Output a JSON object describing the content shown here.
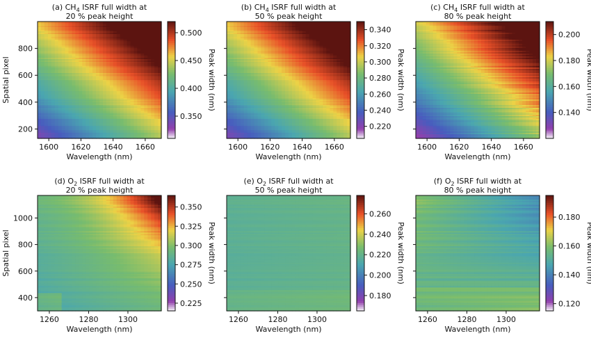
{
  "chart_data": [
    {
      "id": "a",
      "type": "heatmap",
      "title_line1_prefix": "(a) CH",
      "title_sub": "4",
      "title_line1_suffix": " ISRF full width at",
      "title_line2": "20 % peak height",
      "xlabel": "Wavelength (nm)",
      "ylabel": "Spatial pixel",
      "colorbar_label": "Peak width (nm)",
      "xlim": [
        1593,
        1670
      ],
      "ylim": [
        130,
        1000
      ],
      "xticks": [
        1600,
        1620,
        1640,
        1660
      ],
      "yticks": [
        200,
        400,
        600,
        800
      ],
      "clim": [
        0.31,
        0.52
      ],
      "cticks": [
        0.35,
        0.4,
        0.45,
        0.5
      ],
      "cticklabels": [
        "0.350",
        "0.400",
        "0.450",
        "0.500"
      ],
      "pattern": "ch4",
      "show_xlabel": true,
      "show_ylabel": true,
      "show_yticklabels": true
    },
    {
      "id": "b",
      "type": "heatmap",
      "title_line1_prefix": "(b) CH",
      "title_sub": "4",
      "title_line1_suffix": " ISRF full width at",
      "title_line2": "50 % peak height",
      "xlabel": "Wavelength (nm)",
      "ylabel": "",
      "colorbar_label": "Peak width (nm)",
      "xlim": [
        1593,
        1670
      ],
      "ylim": [
        130,
        1000
      ],
      "xticks": [
        1600,
        1620,
        1640,
        1660
      ],
      "yticks": [
        200,
        400,
        600,
        800
      ],
      "clim": [
        0.205,
        0.35
      ],
      "cticks": [
        0.22,
        0.24,
        0.26,
        0.28,
        0.3,
        0.32,
        0.34
      ],
      "cticklabels": [
        "0.220",
        "0.240",
        "0.260",
        "0.280",
        "0.300",
        "0.320",
        "0.340"
      ],
      "pattern": "ch4",
      "show_xlabel": true,
      "show_ylabel": false,
      "show_yticklabels": false
    },
    {
      "id": "c",
      "type": "heatmap",
      "title_line1_prefix": "(c) CH",
      "title_sub": "4",
      "title_line1_suffix": " ISRF full width at",
      "title_line2": "80 % peak height",
      "xlabel": "Wavelength (nm)",
      "ylabel": "",
      "colorbar_label": "Peak width (nm)",
      "xlim": [
        1593,
        1670
      ],
      "ylim": [
        130,
        1000
      ],
      "xticks": [
        1600,
        1620,
        1640,
        1660
      ],
      "yticks": [
        200,
        400,
        600,
        800
      ],
      "clim": [
        0.12,
        0.21
      ],
      "cticks": [
        0.14,
        0.16,
        0.18,
        0.2
      ],
      "cticklabels": [
        "0.140",
        "0.160",
        "0.180",
        "0.200"
      ],
      "pattern": "ch4c",
      "show_xlabel": true,
      "show_ylabel": false,
      "show_yticklabels": false
    },
    {
      "id": "d",
      "type": "heatmap",
      "title_line1_prefix": "(d) O",
      "title_sub": "2",
      "title_line1_suffix": " ISRF full width at",
      "title_line2": "20 % peak height",
      "xlabel": "Wavelength (nm)",
      "ylabel": "Spatial pixel",
      "colorbar_label": "Peak width (nm)",
      "xlim": [
        1254,
        1317
      ],
      "ylim": [
        300,
        1170
      ],
      "xticks": [
        1260,
        1280,
        1300
      ],
      "yticks": [
        400,
        600,
        800,
        1000
      ],
      "clim": [
        0.215,
        0.365
      ],
      "cticks": [
        0.225,
        0.25,
        0.275,
        0.3,
        0.325,
        0.35
      ],
      "cticklabels": [
        "0.225",
        "0.250",
        "0.275",
        "0.300",
        "0.325",
        "0.350"
      ],
      "pattern": "o2d",
      "show_xlabel": true,
      "show_ylabel": true,
      "show_yticklabels": true
    },
    {
      "id": "e",
      "type": "heatmap",
      "title_line1_prefix": "(e) O",
      "title_sub": "2",
      "title_line1_suffix": " ISRF full width at",
      "title_line2": "50 % peak height",
      "xlabel": "Wavelength (nm)",
      "ylabel": "",
      "colorbar_label": "Peak width (nm)",
      "xlim": [
        1254,
        1317
      ],
      "ylim": [
        300,
        1170
      ],
      "xticks": [
        1260,
        1280,
        1300
      ],
      "yticks": [
        400,
        600,
        800,
        1000
      ],
      "clim": [
        0.165,
        0.278
      ],
      "cticks": [
        0.18,
        0.2,
        0.22,
        0.24,
        0.26
      ],
      "cticklabels": [
        "0.180",
        "0.200",
        "0.220",
        "0.240",
        "0.260"
      ],
      "pattern": "o2e",
      "show_xlabel": true,
      "show_ylabel": false,
      "show_yticklabels": false
    },
    {
      "id": "f",
      "type": "heatmap",
      "title_line1_prefix": "(f) O",
      "title_sub": "2",
      "title_line1_suffix": " ISRF full width at",
      "title_line2": "80 % peak height",
      "xlabel": "Wavelength (nm)",
      "ylabel": "",
      "colorbar_label": "Peak width (nm)",
      "xlim": [
        1254,
        1317
      ],
      "ylim": [
        300,
        1170
      ],
      "xticks": [
        1260,
        1280,
        1300
      ],
      "yticks": [
        400,
        600,
        800,
        1000
      ],
      "clim": [
        0.115,
        0.195
      ],
      "cticks": [
        0.12,
        0.14,
        0.16,
        0.18
      ],
      "cticklabels": [
        "0.120",
        "0.140",
        "0.160",
        "0.180"
      ],
      "pattern": "o2f",
      "show_xlabel": true,
      "show_ylabel": false,
      "show_yticklabels": false
    }
  ]
}
